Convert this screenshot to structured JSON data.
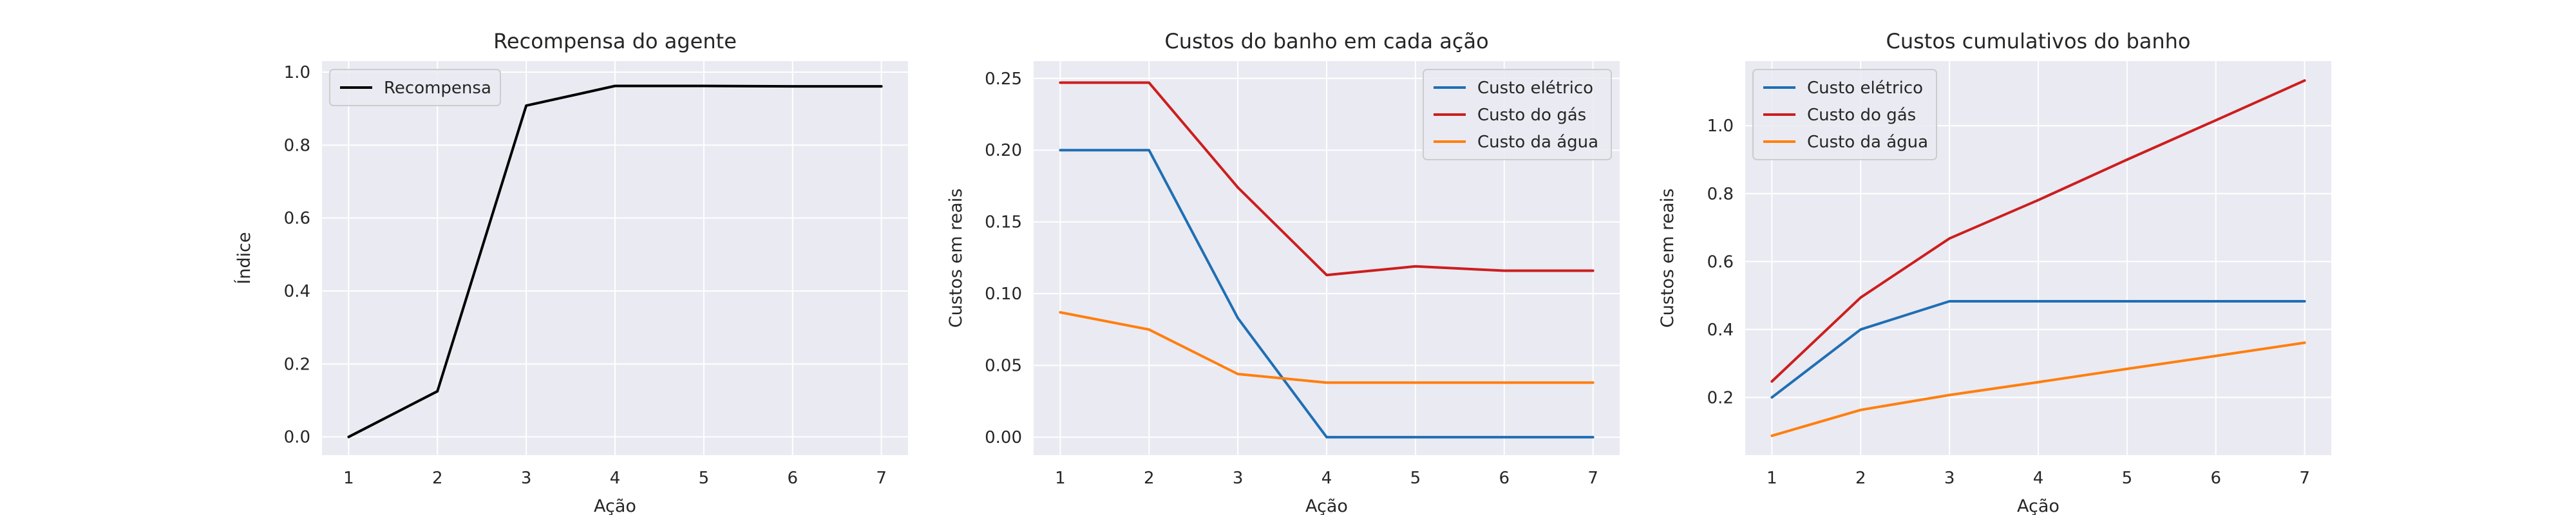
{
  "chart_data": [
    {
      "type": "line",
      "title": "Recompensa do agente",
      "xlabel": "Ação",
      "ylabel": "Índice",
      "x": [
        1,
        2,
        3,
        4,
        5,
        6,
        7
      ],
      "xticks": [
        "1",
        "2",
        "3",
        "4",
        "5",
        "6",
        "7"
      ],
      "yticks": [
        "0.0",
        "0.2",
        "0.4",
        "0.6",
        "0.8",
        "1.0"
      ],
      "xlim": [
        0.7,
        7.3
      ],
      "ylim": [
        -0.05,
        1.03
      ],
      "grid": true,
      "legend_position": "top-left",
      "series": [
        {
          "name": "Recompensa",
          "color": "#000000",
          "values": [
            0.0,
            0.125,
            0.908,
            0.962,
            0.962,
            0.961,
            0.961
          ]
        }
      ]
    },
    {
      "type": "line",
      "title": "Custos do banho em cada ação",
      "xlabel": "Ação",
      "ylabel": "Custos em reais",
      "x": [
        1,
        2,
        3,
        4,
        5,
        6,
        7
      ],
      "xticks": [
        "1",
        "2",
        "3",
        "4",
        "5",
        "6",
        "7"
      ],
      "yticks": [
        "0.00",
        "0.05",
        "0.10",
        "0.15",
        "0.20",
        "0.25"
      ],
      "xlim": [
        0.7,
        7.3
      ],
      "ylim": [
        -0.0125,
        0.262
      ],
      "grid": true,
      "legend_position": "top-right",
      "series": [
        {
          "name": "Custo elétrico",
          "color": "#1f6fb4",
          "values": [
            0.2,
            0.2,
            0.083,
            0.0,
            0.0,
            0.0,
            0.0
          ]
        },
        {
          "name": "Custo do gás",
          "color": "#cc1e1e",
          "values": [
            0.247,
            0.247,
            0.174,
            0.113,
            0.119,
            0.116,
            0.116
          ]
        },
        {
          "name": "Custo da água",
          "color": "#ff7f0e",
          "values": [
            0.087,
            0.075,
            0.044,
            0.038,
            0.038,
            0.038,
            0.038
          ]
        }
      ]
    },
    {
      "type": "line",
      "title": "Custos cumulativos do banho",
      "xlabel": "Ação",
      "ylabel": "Custos em reais",
      "x": [
        1,
        2,
        3,
        4,
        5,
        6,
        7
      ],
      "xticks": [
        "1",
        "2",
        "3",
        "4",
        "5",
        "6",
        "7"
      ],
      "yticks": [
        "0.2",
        "0.4",
        "0.6",
        "0.8",
        "1.0"
      ],
      "xlim": [
        0.7,
        7.3
      ],
      "ylim": [
        0.03,
        1.19
      ],
      "grid": true,
      "legend_position": "top-left",
      "series": [
        {
          "name": "Custo elétrico",
          "color": "#1f6fb4",
          "values": [
            0.2,
            0.4,
            0.483,
            0.483,
            0.483,
            0.483,
            0.483
          ]
        },
        {
          "name": "Custo do gás",
          "color": "#cc1e1e",
          "values": [
            0.247,
            0.494,
            0.668,
            0.781,
            0.9,
            1.016,
            1.133
          ]
        },
        {
          "name": "Custo da água",
          "color": "#ff7f0e",
          "values": [
            0.087,
            0.163,
            0.207,
            0.245,
            0.284,
            0.322,
            0.361
          ]
        }
      ]
    }
  ]
}
